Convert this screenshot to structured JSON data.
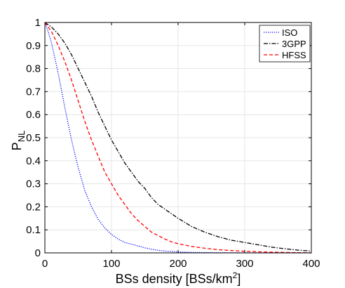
{
  "chart_data": {
    "type": "line",
    "xlabel": "BSs density [BSs/km",
    "xlabel_sup": "2",
    "xlabel_end": "]",
    "ylabel": "P",
    "ylabel_sub": "NL",
    "xlim": [
      0,
      400
    ],
    "ylim": [
      0,
      1
    ],
    "xticks": [
      0,
      100,
      200,
      300,
      400
    ],
    "xtick_labels": [
      "0",
      "100",
      "200",
      "300",
      "400"
    ],
    "yticks": [
      0,
      0.1,
      0.2,
      0.3,
      0.4,
      0.5,
      0.6,
      0.7,
      0.8,
      0.9,
      1
    ],
    "ytick_labels": [
      "0",
      "0.1",
      "0.2",
      "0.3",
      "0.4",
      "0.5",
      "0.6",
      "0.7",
      "0.8",
      "0.9",
      "1"
    ],
    "grid": true,
    "legend_position": "top-right",
    "series": [
      {
        "name": "ISO",
        "color": "#0000ff",
        "dash": "dotted",
        "x": [
          0,
          5,
          10,
          20,
          30,
          40,
          50,
          60,
          70,
          80,
          90,
          100,
          110,
          120,
          130,
          140,
          150,
          160,
          170,
          180,
          190,
          200,
          220,
          250,
          300,
          350,
          400
        ],
        "y": [
          1.0,
          0.96,
          0.91,
          0.78,
          0.63,
          0.49,
          0.37,
          0.27,
          0.2,
          0.145,
          0.108,
          0.08,
          0.06,
          0.045,
          0.038,
          0.03,
          0.022,
          0.016,
          0.011,
          0.008,
          0.006,
          0.004,
          0.002,
          0.001,
          0.0,
          0.0,
          0.0
        ]
      },
      {
        "name": "3GPP",
        "color": "#000000",
        "dash": "dashdot",
        "x": [
          0,
          5,
          10,
          20,
          30,
          40,
          50,
          60,
          70,
          80,
          90,
          100,
          110,
          120,
          130,
          140,
          150,
          160,
          170,
          180,
          190,
          200,
          220,
          240,
          260,
          280,
          300,
          320,
          340,
          360,
          380,
          400
        ],
        "y": [
          1.0,
          0.99,
          0.98,
          0.95,
          0.91,
          0.86,
          0.8,
          0.74,
          0.68,
          0.61,
          0.55,
          0.49,
          0.44,
          0.39,
          0.35,
          0.31,
          0.28,
          0.24,
          0.21,
          0.19,
          0.17,
          0.15,
          0.115,
          0.09,
          0.07,
          0.055,
          0.045,
          0.035,
          0.025,
          0.018,
          0.012,
          0.008
        ]
      },
      {
        "name": "HFSS",
        "color": "#ff0000",
        "dash": "dashed",
        "x": [
          0,
          5,
          10,
          20,
          30,
          40,
          50,
          60,
          70,
          80,
          90,
          100,
          110,
          120,
          130,
          140,
          150,
          160,
          170,
          180,
          190,
          200,
          220,
          240,
          260,
          280,
          300,
          320,
          340,
          360,
          380,
          400
        ],
        "y": [
          1.0,
          0.98,
          0.96,
          0.9,
          0.83,
          0.75,
          0.66,
          0.57,
          0.49,
          0.42,
          0.35,
          0.3,
          0.25,
          0.21,
          0.17,
          0.14,
          0.115,
          0.09,
          0.075,
          0.06,
          0.048,
          0.04,
          0.028,
          0.02,
          0.014,
          0.01,
          0.007,
          0.005,
          0.003,
          0.002,
          0.001,
          0.0
        ]
      }
    ]
  }
}
